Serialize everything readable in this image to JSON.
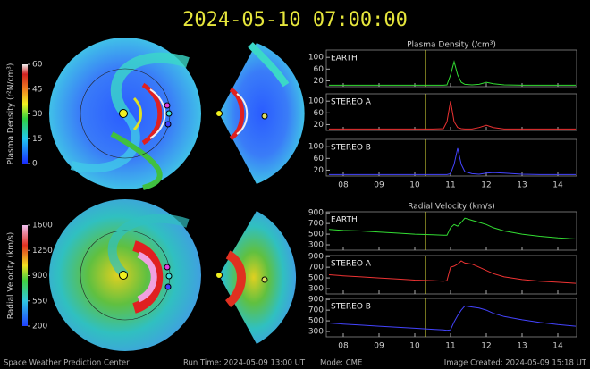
{
  "title": "2024-05-10 07:00:00",
  "footer": [
    "Space Weather Prediction Center",
    "Run Time: 2024-05-09 13:00 UT",
    "Mode: CME",
    "Image Created: 2024-05-09 15:18 UT"
  ],
  "colorbars": [
    {
      "label": "Plasma Density (r²N/cm³)",
      "lim": [
        0,
        60
      ],
      "ticks": [
        0,
        15,
        30,
        45,
        60
      ]
    },
    {
      "label": "Radial Velocity (km/s)",
      "lim": [
        200,
        1600
      ],
      "ticks": [
        200,
        550,
        900,
        1250,
        1600
      ]
    }
  ],
  "chart_data": [
    {
      "type": "line",
      "title": "Plasma Density (/cm³)",
      "x": [
        7.6,
        8.0,
        8.5,
        9.0,
        9.5,
        10.0,
        10.5,
        10.8,
        10.9,
        11.0,
        11.1,
        11.2,
        11.3,
        11.4,
        11.6,
        11.8,
        12.0,
        12.2,
        12.5,
        13.0,
        13.5,
        14.0,
        14.5
      ],
      "xlim": [
        7.525,
        14.525
      ],
      "xticks": [
        {
          "value": 8,
          "label": "08"
        },
        {
          "value": 9,
          "label": "09"
        },
        10,
        11,
        12,
        13,
        14
      ],
      "marker_x": 10.3,
      "series": [
        {
          "name": "EARTH",
          "color": "#33dd33",
          "ylim": [
            0,
            125
          ],
          "yticks": [
            20,
            60,
            100
          ],
          "values": [
            5,
            5,
            5,
            5,
            5,
            5,
            5,
            5,
            6,
            40,
            85,
            40,
            15,
            8,
            6,
            8,
            15,
            10,
            6,
            5,
            5,
            5,
            5
          ]
        },
        {
          "name": "STEREO A",
          "color": "#ee3333",
          "ylim": [
            0,
            125
          ],
          "yticks": [
            20,
            60,
            100
          ],
          "values": [
            5,
            5,
            5,
            5,
            5,
            5,
            5,
            6,
            30,
            100,
            30,
            10,
            6,
            5,
            5,
            10,
            18,
            10,
            5,
            5,
            5,
            5,
            5
          ]
        },
        {
          "name": "STEREO B",
          "color": "#4444ff",
          "ylim": [
            0,
            125
          ],
          "yticks": [
            20,
            60,
            100
          ],
          "values": [
            5,
            5,
            5,
            5,
            5,
            5,
            5,
            5,
            5,
            8,
            40,
            95,
            40,
            15,
            8,
            6,
            10,
            12,
            10,
            6,
            5,
            5,
            5
          ]
        }
      ]
    },
    {
      "type": "line",
      "title": "Radial Velocity (km/s)",
      "x": [
        7.6,
        8.0,
        8.5,
        9.0,
        9.5,
        10.0,
        10.5,
        10.8,
        10.9,
        11.0,
        11.1,
        11.2,
        11.3,
        11.4,
        11.6,
        11.8,
        12.0,
        12.2,
        12.5,
        13.0,
        13.5,
        14.0,
        14.5
      ],
      "xlim": [
        7.525,
        14.525
      ],
      "xticks": [
        {
          "value": 8,
          "label": "08"
        },
        {
          "value": 9,
          "label": "09"
        },
        10,
        11,
        12,
        13,
        14
      ],
      "marker_x": 10.3,
      "series": [
        {
          "name": "EARTH",
          "color": "#33dd33",
          "ylim": [
            200,
            920
          ],
          "yticks": [
            300,
            500,
            700,
            900
          ],
          "values": [
            590,
            570,
            560,
            540,
            520,
            500,
            490,
            480,
            480,
            620,
            680,
            650,
            720,
            800,
            760,
            720,
            680,
            620,
            560,
            500,
            460,
            430,
            410
          ]
        },
        {
          "name": "STEREO A",
          "color": "#ee3333",
          "ylim": [
            200,
            920
          ],
          "yticks": [
            300,
            500,
            700,
            900
          ],
          "values": [
            560,
            540,
            520,
            500,
            480,
            460,
            450,
            440,
            450,
            700,
            720,
            760,
            820,
            780,
            760,
            700,
            640,
            580,
            520,
            470,
            440,
            420,
            400
          ]
        },
        {
          "name": "STEREO B",
          "color": "#4444ff",
          "ylim": [
            200,
            920
          ],
          "yticks": [
            300,
            500,
            700,
            900
          ],
          "values": [
            460,
            440,
            420,
            400,
            380,
            360,
            340,
            330,
            320,
            330,
            480,
            600,
            700,
            780,
            760,
            740,
            700,
            640,
            580,
            520,
            470,
            430,
            400
          ]
        }
      ]
    }
  ]
}
